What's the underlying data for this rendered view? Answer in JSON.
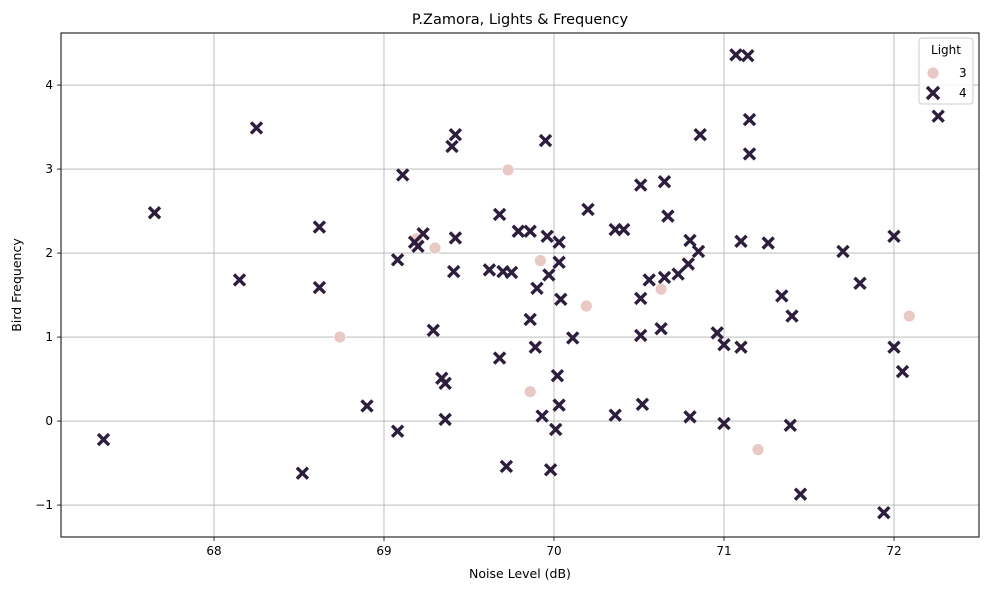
{
  "chart_data": {
    "type": "scatter",
    "title": "P.Zamora, Lights & Frequency",
    "xlabel": "Noise Level (dB)",
    "ylabel": "Bird Frequency",
    "xlim": [
      67.1,
      72.5
    ],
    "ylim": [
      -1.38,
      4.62
    ],
    "xticks": [
      68,
      69,
      70,
      71,
      72
    ],
    "yticks": [
      -1,
      0,
      1,
      2,
      3,
      4
    ],
    "xtick_labels": [
      "68",
      "69",
      "70",
      "71",
      "72"
    ],
    "ytick_labels": [
      "−1",
      "0",
      "1",
      "2",
      "3",
      "4"
    ],
    "grid": true,
    "legend": {
      "title": "Light",
      "placement": "top-right"
    },
    "series": [
      {
        "name": "3",
        "marker": "circle",
        "color": "#e8c9c3",
        "points": [
          [
            68.74,
            1.0
          ],
          [
            69.19,
            2.17
          ],
          [
            69.3,
            2.06
          ],
          [
            69.73,
            2.99
          ],
          [
            69.86,
            0.35
          ],
          [
            69.92,
            1.91
          ],
          [
            70.19,
            1.37
          ],
          [
            70.63,
            1.57
          ],
          [
            71.2,
            -0.34
          ],
          [
            72.09,
            1.25
          ]
        ]
      },
      {
        "name": "4",
        "marker": "x",
        "color": "#2d1e3e",
        "points": [
          [
            67.35,
            -0.22
          ],
          [
            67.65,
            2.48
          ],
          [
            68.15,
            1.68
          ],
          [
            68.25,
            3.49
          ],
          [
            68.52,
            -0.62
          ],
          [
            68.62,
            2.31
          ],
          [
            68.62,
            1.59
          ],
          [
            68.9,
            0.18
          ],
          [
            69.08,
            1.92
          ],
          [
            69.08,
            -0.12
          ],
          [
            69.11,
            2.93
          ],
          [
            69.18,
            2.13
          ],
          [
            69.2,
            2.08
          ],
          [
            69.23,
            2.23
          ],
          [
            69.29,
            1.08
          ],
          [
            69.34,
            0.51
          ],
          [
            69.36,
            0.45
          ],
          [
            69.36,
            0.02
          ],
          [
            69.4,
            3.27
          ],
          [
            69.41,
            1.78
          ],
          [
            69.42,
            3.41
          ],
          [
            69.42,
            2.18
          ],
          [
            69.62,
            1.8
          ],
          [
            69.68,
            0.75
          ],
          [
            69.68,
            2.46
          ],
          [
            69.7,
            1.78
          ],
          [
            69.72,
            -0.54
          ],
          [
            69.75,
            1.77
          ],
          [
            69.79,
            2.26
          ],
          [
            69.86,
            2.26
          ],
          [
            69.86,
            1.21
          ],
          [
            69.89,
            0.88
          ],
          [
            69.9,
            1.58
          ],
          [
            69.93,
            0.06
          ],
          [
            69.95,
            3.34
          ],
          [
            69.96,
            2.2
          ],
          [
            69.97,
            1.74
          ],
          [
            69.98,
            -0.58
          ],
          [
            70.01,
            -0.1
          ],
          [
            70.02,
            0.54
          ],
          [
            70.03,
            0.19
          ],
          [
            70.03,
            2.13
          ],
          [
            70.03,
            1.89
          ],
          [
            70.04,
            1.45
          ],
          [
            70.11,
            0.99
          ],
          [
            70.2,
            2.52
          ],
          [
            70.36,
            2.28
          ],
          [
            70.36,
            0.07
          ],
          [
            70.41,
            2.28
          ],
          [
            70.51,
            2.81
          ],
          [
            70.51,
            1.46
          ],
          [
            70.51,
            1.02
          ],
          [
            70.52,
            0.2
          ],
          [
            70.56,
            1.68
          ],
          [
            70.63,
            1.1
          ],
          [
            70.65,
            2.85
          ],
          [
            70.65,
            1.71
          ],
          [
            70.67,
            2.44
          ],
          [
            70.73,
            1.75
          ],
          [
            70.79,
            1.87
          ],
          [
            70.8,
            2.15
          ],
          [
            70.8,
            0.05
          ],
          [
            70.85,
            2.02
          ],
          [
            70.86,
            3.41
          ],
          [
            70.96,
            1.05
          ],
          [
            71.0,
            0.91
          ],
          [
            71.0,
            -0.03
          ],
          [
            71.07,
            4.36
          ],
          [
            71.1,
            2.14
          ],
          [
            71.1,
            0.88
          ],
          [
            71.14,
            4.35
          ],
          [
            71.15,
            3.59
          ],
          [
            71.15,
            3.18
          ],
          [
            71.26,
            2.12
          ],
          [
            71.34,
            1.49
          ],
          [
            71.39,
            -0.05
          ],
          [
            71.4,
            1.25
          ],
          [
            71.45,
            -0.87
          ],
          [
            71.7,
            2.02
          ],
          [
            71.8,
            1.64
          ],
          [
            71.94,
            -1.09
          ],
          [
            72.0,
            2.2
          ],
          [
            72.0,
            0.88
          ],
          [
            72.05,
            0.59
          ],
          [
            72.26,
            3.63
          ]
        ]
      }
    ]
  }
}
